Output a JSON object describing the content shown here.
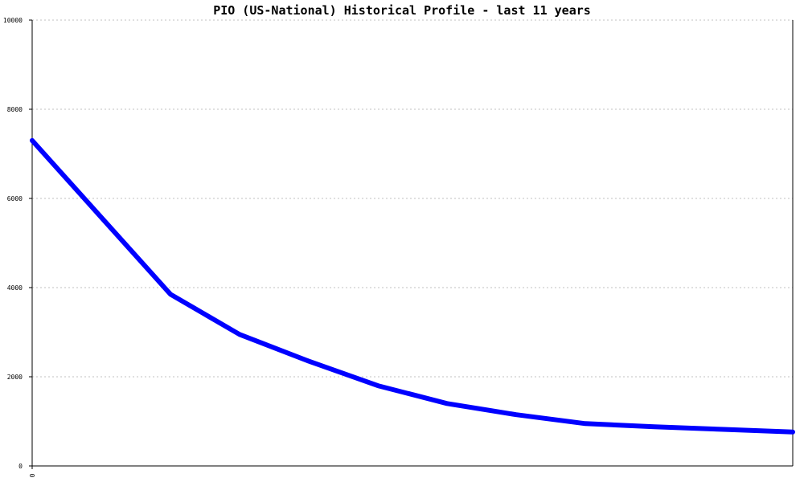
{
  "chart_data": {
    "type": "line",
    "title": "PIO (US-National) Historical Profile - last 11 years",
    "xlabel": "",
    "ylabel": "",
    "ylim": [
      0,
      10000
    ],
    "xlim": [
      0,
      11
    ],
    "y_ticks": [
      "0",
      "2000",
      "4000",
      "6000",
      "8000",
      "10000"
    ],
    "x_ticks": [
      "0"
    ],
    "grid": true,
    "series": [
      {
        "color": "#0000ff",
        "x": [
          0,
          2,
          3,
          4,
          5,
          6,
          7,
          8,
          9,
          10,
          11
        ],
        "y": [
          7300,
          3850,
          2950,
          2350,
          1800,
          1400,
          1150,
          950,
          880,
          820,
          760
        ]
      }
    ]
  }
}
